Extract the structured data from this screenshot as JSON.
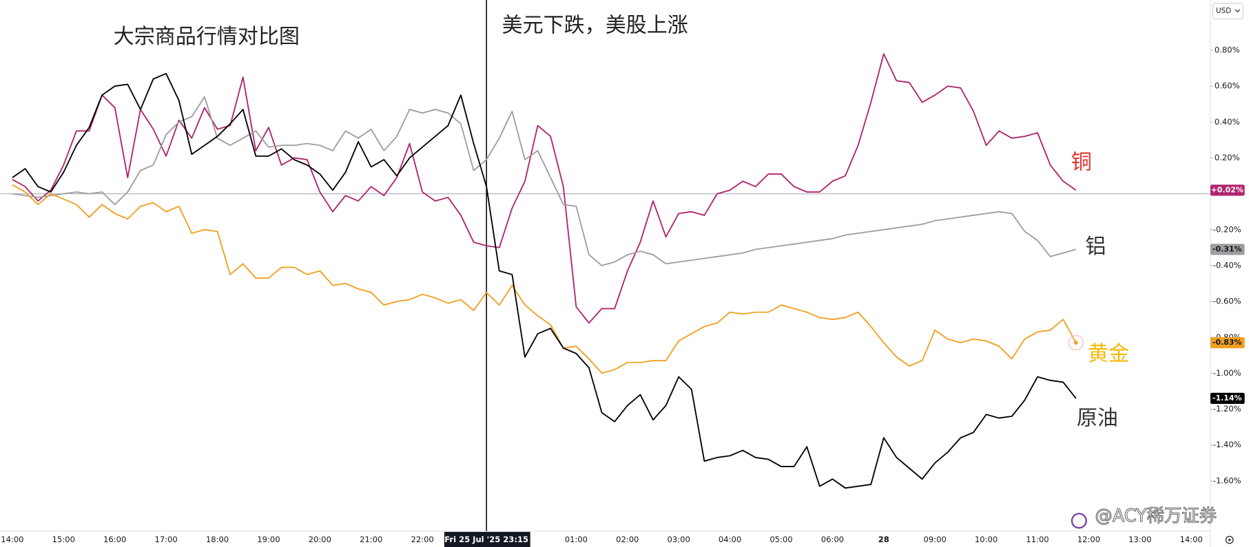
{
  "chart_data": {
    "type": "line",
    "title": "大宗商品行情对比图",
    "annotation": "美元下跌，美股上涨",
    "currency": "USD",
    "watermark": "@ACY稀万证券",
    "crosshair_index": 37,
    "grid": false,
    "ylim": [
      -1.88,
      1.08
    ],
    "yticks": [
      {
        "value": 0.8,
        "label": "0.80%"
      },
      {
        "value": 0.6,
        "label": "0.60%"
      },
      {
        "value": 0.4,
        "label": "0.40%"
      },
      {
        "value": 0.2,
        "label": "0.20%"
      },
      {
        "value": -0.2,
        "label": "-0.20%"
      },
      {
        "value": -0.4,
        "label": "-0.40%"
      },
      {
        "value": -0.6,
        "label": "-0.60%"
      },
      {
        "value": -0.8,
        "label": "-0.80%"
      },
      {
        "value": -1.0,
        "label": "-1.00%"
      },
      {
        "value": -1.2,
        "label": "-1.20%"
      },
      {
        "value": -1.4,
        "label": "-1.40%"
      },
      {
        "value": -1.6,
        "label": "-1.60%"
      }
    ],
    "categories": [
      "14:00",
      null,
      null,
      null,
      "15:00",
      null,
      null,
      null,
      "16:00",
      null,
      null,
      null,
      "17:00",
      null,
      null,
      null,
      "18:00",
      null,
      null,
      null,
      "19:00",
      null,
      null,
      null,
      "20:00",
      null,
      null,
      null,
      "21:00",
      null,
      null,
      null,
      "22:00",
      null,
      null,
      null,
      null,
      "Fri 25 Jul '25  23:15",
      null,
      null,
      null,
      null,
      null,
      null,
      "01:00",
      null,
      null,
      null,
      "02:00",
      null,
      null,
      null,
      "03:00",
      null,
      null,
      null,
      "04:00",
      null,
      null,
      null,
      "05:00",
      null,
      null,
      null,
      "06:00",
      null,
      null,
      null,
      "28",
      null,
      null,
      null,
      "09:00",
      null,
      null,
      null,
      "10:00",
      null,
      null,
      null,
      "11:00",
      null,
      null,
      null,
      "12:00",
      null,
      null,
      null,
      "13:00",
      null,
      null,
      null,
      "14:00"
    ],
    "series": [
      {
        "name": "铜",
        "color": "#b0246e",
        "label_color": "#e0302a",
        "tag_text_color": "#ffffff",
        "last_label": "+0.02%",
        "values": [
          0.08,
          0.04,
          -0.04,
          0.02,
          0.16,
          0.35,
          0.35,
          0.55,
          0.48,
          0.09,
          0.47,
          0.36,
          0.21,
          0.41,
          0.31,
          0.48,
          0.36,
          0.38,
          0.65,
          0.24,
          0.37,
          0.16,
          0.2,
          0.19,
          0.01,
          -0.1,
          -0.01,
          -0.04,
          0.04,
          -0.01,
          0.09,
          0.28,
          0.01,
          -0.04,
          -0.02,
          -0.12,
          -0.27,
          -0.29,
          -0.3,
          -0.08,
          0.07,
          0.38,
          0.32,
          0.04,
          -0.63,
          -0.72,
          -0.64,
          -0.64,
          -0.43,
          -0.27,
          -0.04,
          -0.24,
          -0.11,
          -0.1,
          -0.12,
          0.0,
          0.02,
          0.07,
          0.04,
          0.11,
          0.11,
          0.04,
          0.01,
          0.01,
          0.07,
          0.1,
          0.27,
          0.51,
          0.78,
          0.63,
          0.62,
          0.51,
          0.55,
          0.6,
          0.59,
          0.46,
          0.27,
          0.35,
          0.31,
          0.32,
          0.34,
          0.16,
          0.07,
          0.02,
          null,
          null,
          null,
          null,
          null,
          null,
          null,
          null,
          null
        ]
      },
      {
        "name": "铝",
        "color": "#9e9e9e",
        "label_color": "#333333",
        "tag_text_color": "#131722",
        "last_label": "-0.31%",
        "values": [
          0.0,
          -0.01,
          -0.02,
          -0.01,
          0.0,
          0.01,
          0.0,
          0.01,
          -0.06,
          0.01,
          0.13,
          0.16,
          0.33,
          0.4,
          0.43,
          0.54,
          0.31,
          0.27,
          0.31,
          0.35,
          0.26,
          0.27,
          0.27,
          0.28,
          0.27,
          0.24,
          0.35,
          0.31,
          0.36,
          0.24,
          0.32,
          0.47,
          0.45,
          0.47,
          0.45,
          0.39,
          0.13,
          0.19,
          0.31,
          0.46,
          0.19,
          0.24,
          0.09,
          -0.06,
          -0.07,
          -0.34,
          -0.4,
          -0.38,
          -0.34,
          -0.32,
          -0.34,
          -0.39,
          -0.38,
          -0.37,
          -0.36,
          -0.35,
          -0.34,
          -0.33,
          -0.31,
          -0.3,
          -0.29,
          -0.28,
          -0.27,
          -0.26,
          -0.25,
          -0.23,
          -0.22,
          -0.21,
          -0.2,
          -0.19,
          -0.18,
          -0.17,
          -0.15,
          -0.14,
          -0.13,
          -0.12,
          -0.11,
          -0.1,
          -0.11,
          -0.21,
          -0.26,
          -0.35,
          -0.33,
          -0.31,
          null,
          null,
          null,
          null,
          null,
          null,
          null,
          null,
          null
        ]
      },
      {
        "name": "黄金",
        "color": "#f0a020",
        "label_color": "#f5b800",
        "tag_text_color": "#131722",
        "last_label": "-0.83%",
        "values": [
          0.05,
          0.01,
          -0.06,
          0.0,
          -0.03,
          -0.06,
          -0.13,
          -0.06,
          -0.11,
          -0.14,
          -0.07,
          -0.05,
          -0.1,
          -0.07,
          -0.22,
          -0.2,
          -0.21,
          -0.45,
          -0.39,
          -0.47,
          -0.47,
          -0.41,
          -0.41,
          -0.45,
          -0.43,
          -0.51,
          -0.5,
          -0.53,
          -0.55,
          -0.62,
          -0.6,
          -0.59,
          -0.56,
          -0.58,
          -0.61,
          -0.59,
          -0.65,
          -0.55,
          -0.62,
          -0.51,
          -0.62,
          -0.68,
          -0.73,
          -0.86,
          -0.85,
          -0.92,
          -1.0,
          -0.98,
          -0.94,
          -0.94,
          -0.93,
          -0.93,
          -0.82,
          -0.78,
          -0.74,
          -0.72,
          -0.66,
          -0.67,
          -0.66,
          -0.66,
          -0.62,
          -0.64,
          -0.66,
          -0.69,
          -0.7,
          -0.69,
          -0.66,
          -0.74,
          -0.83,
          -0.91,
          -0.96,
          -0.93,
          -0.76,
          -0.81,
          -0.83,
          -0.81,
          -0.82,
          -0.85,
          -0.92,
          -0.81,
          -0.77,
          -0.76,
          -0.7,
          -0.83,
          null,
          null,
          null,
          null,
          null,
          null,
          null,
          null,
          null
        ]
      },
      {
        "name": "原油",
        "color": "#000000",
        "label_color": "#333333",
        "tag_text_color": "#ffffff",
        "last_label": "-1.14%",
        "values": [
          0.09,
          0.14,
          0.04,
          0.01,
          0.12,
          0.27,
          0.37,
          0.55,
          0.6,
          0.61,
          0.47,
          0.64,
          0.67,
          0.52,
          0.22,
          0.27,
          0.32,
          0.39,
          0.47,
          0.21,
          0.21,
          0.25,
          0.19,
          0.16,
          0.11,
          0.02,
          0.12,
          0.29,
          0.15,
          0.19,
          0.1,
          0.2,
          0.26,
          0.32,
          0.38,
          0.55,
          0.28,
          0.04,
          -0.43,
          -0.45,
          -0.91,
          -0.78,
          -0.75,
          -0.86,
          -0.89,
          -0.97,
          -1.22,
          -1.27,
          -1.18,
          -1.12,
          -1.26,
          -1.18,
          -1.02,
          -1.09,
          -1.49,
          -1.47,
          -1.46,
          -1.43,
          -1.47,
          -1.48,
          -1.52,
          -1.52,
          -1.41,
          -1.63,
          -1.59,
          -1.64,
          -1.63,
          -1.62,
          -1.36,
          -1.47,
          -1.53,
          -1.59,
          -1.5,
          -1.44,
          -1.36,
          -1.33,
          -1.23,
          -1.25,
          -1.24,
          -1.15,
          -1.02,
          -1.04,
          -1.05,
          -1.14,
          null,
          null,
          null,
          null,
          null,
          null,
          null,
          null,
          null
        ]
      }
    ]
  }
}
